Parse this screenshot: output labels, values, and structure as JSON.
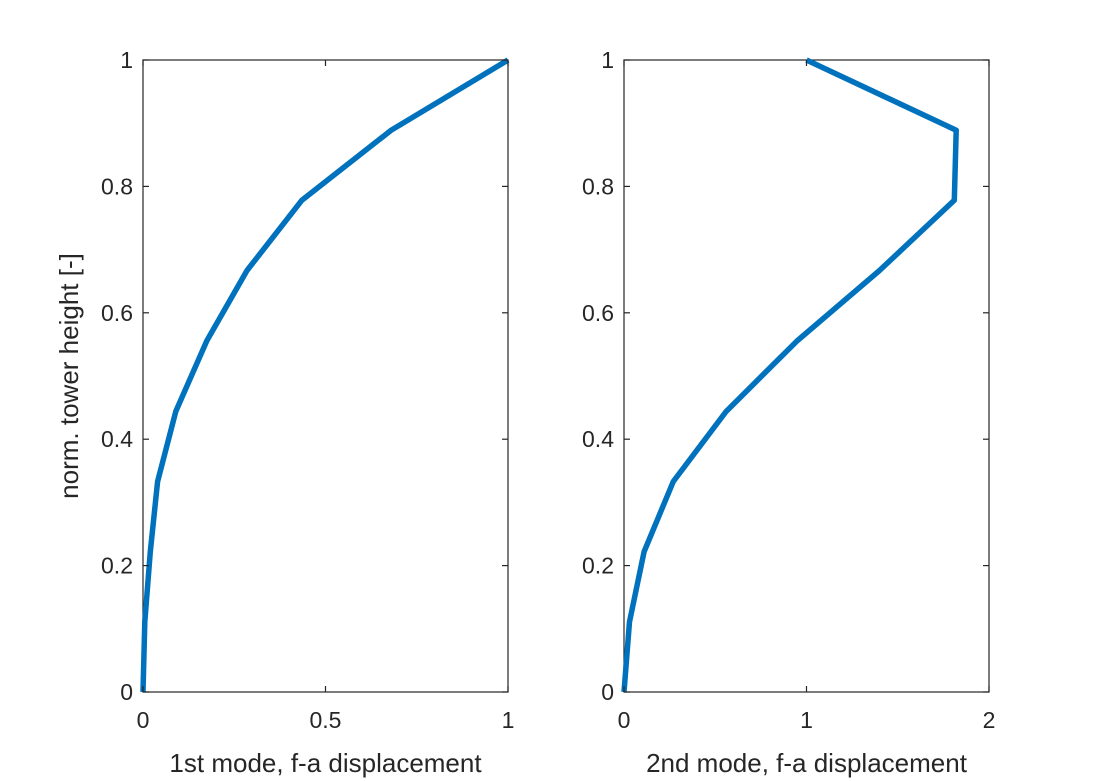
{
  "chart_data": [
    {
      "type": "line",
      "xlabel": "1st mode, f-a displacement",
      "ylabel": "norm. tower height [-]",
      "xlim": [
        0,
        1
      ],
      "ylim": [
        0,
        1
      ],
      "xticks": [
        0,
        0.5,
        1
      ],
      "xtick_labels": [
        "0",
        "0.5",
        "1"
      ],
      "yticks": [
        0,
        0.2,
        0.4,
        0.6,
        0.8,
        1
      ],
      "ytick_labels": [
        "0",
        "0.2",
        "0.4",
        "0.6",
        "0.8",
        "1"
      ],
      "grid": false,
      "series": [
        {
          "color": "#0072bd",
          "x": [
            0,
            0.005,
            0.02,
            0.04,
            0.09,
            0.175,
            0.285,
            0.435,
            0.68,
            1.0
          ],
          "y": [
            0,
            0.111,
            0.222,
            0.333,
            0.444,
            0.556,
            0.667,
            0.778,
            0.889,
            1.0
          ]
        }
      ]
    },
    {
      "type": "line",
      "xlabel": "2nd mode, f-a displacement",
      "ylabel": "",
      "xlim": [
        0,
        2
      ],
      "ylim": [
        0,
        1
      ],
      "xticks": [
        0,
        1,
        2
      ],
      "xtick_labels": [
        "0",
        "1",
        "2"
      ],
      "yticks": [
        0,
        0.2,
        0.4,
        0.6,
        0.8,
        1
      ],
      "ytick_labels": [
        "0",
        "0.2",
        "0.4",
        "0.6",
        "0.8",
        "1"
      ],
      "grid": false,
      "series": [
        {
          "color": "#0072bd",
          "x": [
            0,
            0.03,
            0.11,
            0.27,
            0.56,
            0.95,
            1.4,
            1.81,
            1.82,
            1.0
          ],
          "y": [
            0,
            0.111,
            0.222,
            0.333,
            0.444,
            0.556,
            0.667,
            0.778,
            0.889,
            1.0
          ]
        }
      ]
    }
  ]
}
